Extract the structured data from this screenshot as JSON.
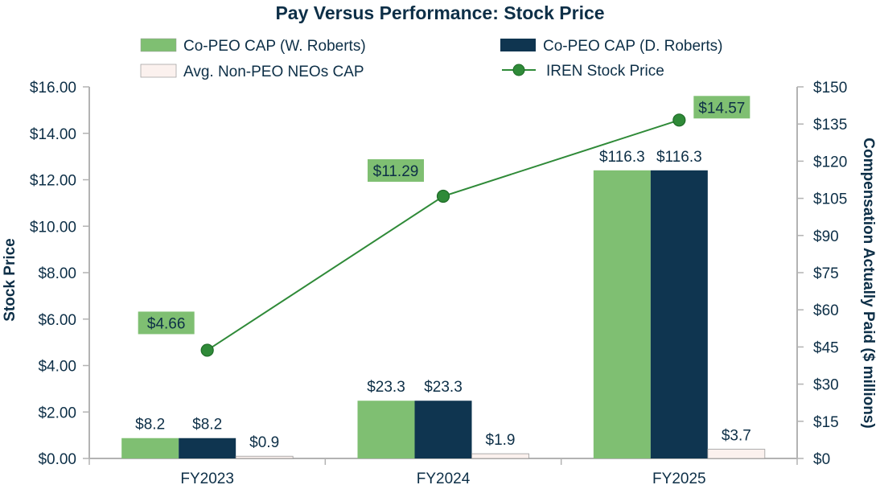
{
  "chart_data": {
    "type": "bar",
    "title": "Pay Versus Performance: Stock Price",
    "categories": [
      "FY2023",
      "FY2024",
      "FY2025"
    ],
    "series": [
      {
        "name": "Co-PEO CAP (W. Roberts)",
        "axis": "right",
        "color": "#7fbf72",
        "values": [
          8.2,
          23.3,
          116.3
        ],
        "labels": [
          "$8.2",
          "$23.3",
          "$116.3"
        ]
      },
      {
        "name": "Co-PEO CAP (D. Roberts)",
        "axis": "right",
        "color": "#0f3550",
        "values": [
          8.2,
          23.3,
          116.3
        ],
        "labels": [
          "$8.2",
          "$23.3",
          "$116.3"
        ]
      },
      {
        "name": "Avg. Non-PEO NEOs CAP",
        "axis": "right",
        "color": "#fbf1ee",
        "values": [
          0.9,
          1.9,
          3.7
        ],
        "labels": [
          "$0.9",
          "$1.9",
          "$3.7"
        ]
      }
    ],
    "line_series": {
      "name": "IREN Stock Price",
      "axis": "left",
      "type": "line",
      "color": "#2f8a38",
      "values": [
        4.66,
        11.29,
        14.57
      ],
      "labels": [
        "$4.66",
        "$11.29",
        "$14.57"
      ],
      "label_bg": "#7fbf72"
    },
    "left_axis": {
      "label": "Stock Price",
      "ylim": [
        0,
        16
      ],
      "ticks": [
        0,
        2,
        4,
        6,
        8,
        10,
        12,
        14,
        16
      ],
      "tick_labels": [
        "$0.00",
        "$2.00",
        "$4.00",
        "$6.00",
        "$8.00",
        "$10.00",
        "$12.00",
        "$14.00",
        "$16.00"
      ]
    },
    "right_axis": {
      "label": "Compensation Actually Paid ($ millions)",
      "ylim": [
        0,
        150
      ],
      "ticks": [
        0,
        15,
        30,
        45,
        60,
        75,
        90,
        105,
        120,
        135,
        150
      ],
      "tick_labels": [
        "$0",
        "$15",
        "$30",
        "$45",
        "$60",
        "$75",
        "$90",
        "$105",
        "$120",
        "$135",
        "$150"
      ]
    },
    "grid": false,
    "legend_position": "top"
  }
}
